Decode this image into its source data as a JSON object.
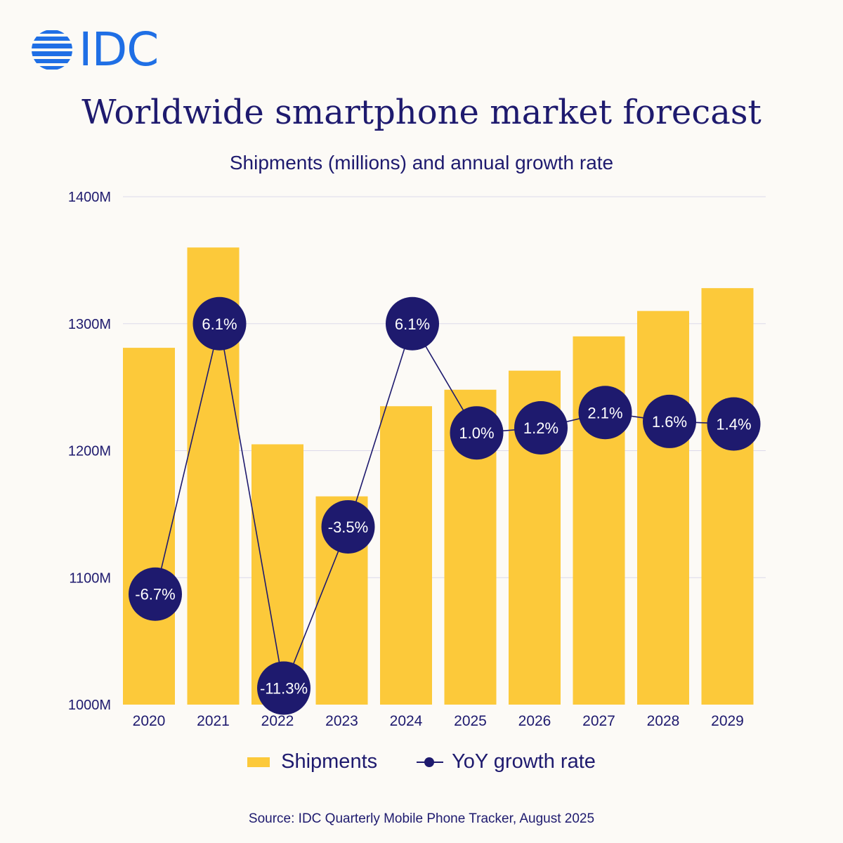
{
  "brand": {
    "logo_text": "IDC",
    "logo_color": "#1f6fe5"
  },
  "chart_data": {
    "type": "bar",
    "title": "Worldwide smartphone market forecast",
    "subtitle": "Shipments (millions) and annual growth rate",
    "categories": [
      "2020",
      "2021",
      "2022",
      "2023",
      "2024",
      "2025",
      "2026",
      "2027",
      "2028",
      "2029"
    ],
    "y_ticks": [
      "1400M",
      "1300M",
      "1200M",
      "1100M",
      "1000M"
    ],
    "ylim": [
      1000,
      1400
    ],
    "grid": true,
    "series": [
      {
        "name": "Shipments",
        "type": "bar",
        "color": "#fcc93a",
        "values": [
          1281,
          1360,
          1205,
          1164,
          1235,
          1248,
          1263,
          1290,
          1310,
          1328
        ]
      },
      {
        "name": "YoY growth rate",
        "type": "line",
        "color": "#1e1a6e",
        "values": [
          -6.7,
          6.1,
          -11.3,
          -3.5,
          6.1,
          1.0,
          1.2,
          2.1,
          1.6,
          1.4
        ],
        "labels": [
          "-6.7%",
          "6.1%",
          "-11.3%",
          "-3.5%",
          "6.1%",
          "1.0%",
          "1.2%",
          "2.1%",
          "1.6%",
          "1.4%"
        ],
        "marker_levels": [
          1087,
          1300,
          1013,
          1140,
          1300,
          1214,
          1218,
          1230,
          1223,
          1221
        ]
      }
    ],
    "legend_position": "bottom"
  },
  "legend": {
    "shipments_label": "Shipments",
    "growth_label": "YoY growth rate"
  },
  "source": "Source:  IDC Quarterly Mobile Phone Tracker, August 2025"
}
